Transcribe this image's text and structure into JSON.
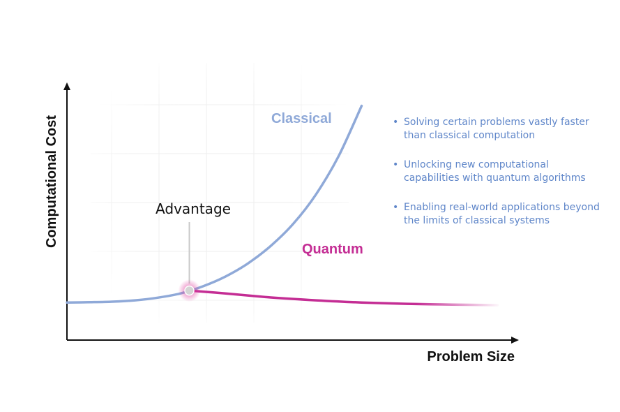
{
  "chart_data": {
    "type": "line",
    "xlabel": "Problem Size",
    "ylabel": "Computational Cost",
    "grid": true,
    "series": [
      {
        "name": "Classical",
        "color": "#8fa9d8",
        "x": [
          0.0,
          0.5,
          1.0,
          1.5,
          2.0,
          2.5,
          3.0,
          3.5,
          4.0,
          4.5,
          5.0,
          5.5,
          6.0,
          6.5
        ],
        "y": [
          0.39,
          0.4,
          0.42,
          0.47,
          0.57,
          0.73,
          1.0,
          1.37,
          1.87,
          2.53,
          3.37,
          4.48,
          5.93,
          7.8
        ]
      },
      {
        "name": "Quantum",
        "color": "#c42d94",
        "x": [
          2.7,
          3.5,
          4.5,
          5.5,
          6.5,
          7.5,
          8.5,
          9.5
        ],
        "y": [
          0.84,
          0.73,
          0.58,
          0.47,
          0.39,
          0.34,
          0.31,
          0.29
        ]
      }
    ],
    "annotations": [
      {
        "text": "Advantage",
        "x": 2.7,
        "y": 0.84
      }
    ]
  },
  "bullets": [
    "Solving certain problems vastly faster than classical computation",
    "Unlocking new computational capabilities with quantum algorithms",
    "Enabling real-world applications beyond the limits of classical systems"
  ],
  "colors": {
    "classical": "#8fa9d8",
    "quantum": "#c42d94",
    "bullet_text": "#5f86c9",
    "axis": "#111111"
  }
}
